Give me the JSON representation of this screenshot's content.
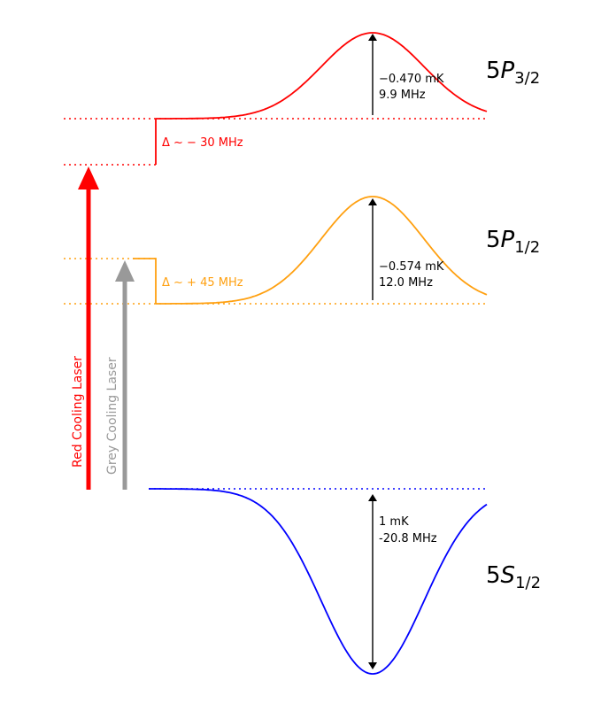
{
  "colors": {
    "red": "#ff0000",
    "orange": "#ffa010",
    "blue": "#0000ff",
    "grey": "#999999",
    "black": "#000000"
  },
  "levels": {
    "p32": {
      "label_main": "5",
      "label_italic": "P",
      "label_sub": "3/2",
      "shift_label": "−0.470 mK",
      "freq_label": "9.9 MHz",
      "detuning_label": "Δ ~ − 30 MHz"
    },
    "p12": {
      "label_main": "5",
      "label_italic": "P",
      "label_sub": "1/2",
      "shift_label": "−0.574 mK",
      "freq_label": "12.0 MHz",
      "detuning_label": "Δ ~ + 45 MHz"
    },
    "s12": {
      "label_main": "5",
      "label_italic": "S",
      "label_sub": "1/2",
      "shift_label": "1 mK",
      "freq_label": "-20.8 MHz"
    }
  },
  "lasers": {
    "red_label": "Red Cooling Laser",
    "grey_label": "Grey Cooling Laser"
  }
}
